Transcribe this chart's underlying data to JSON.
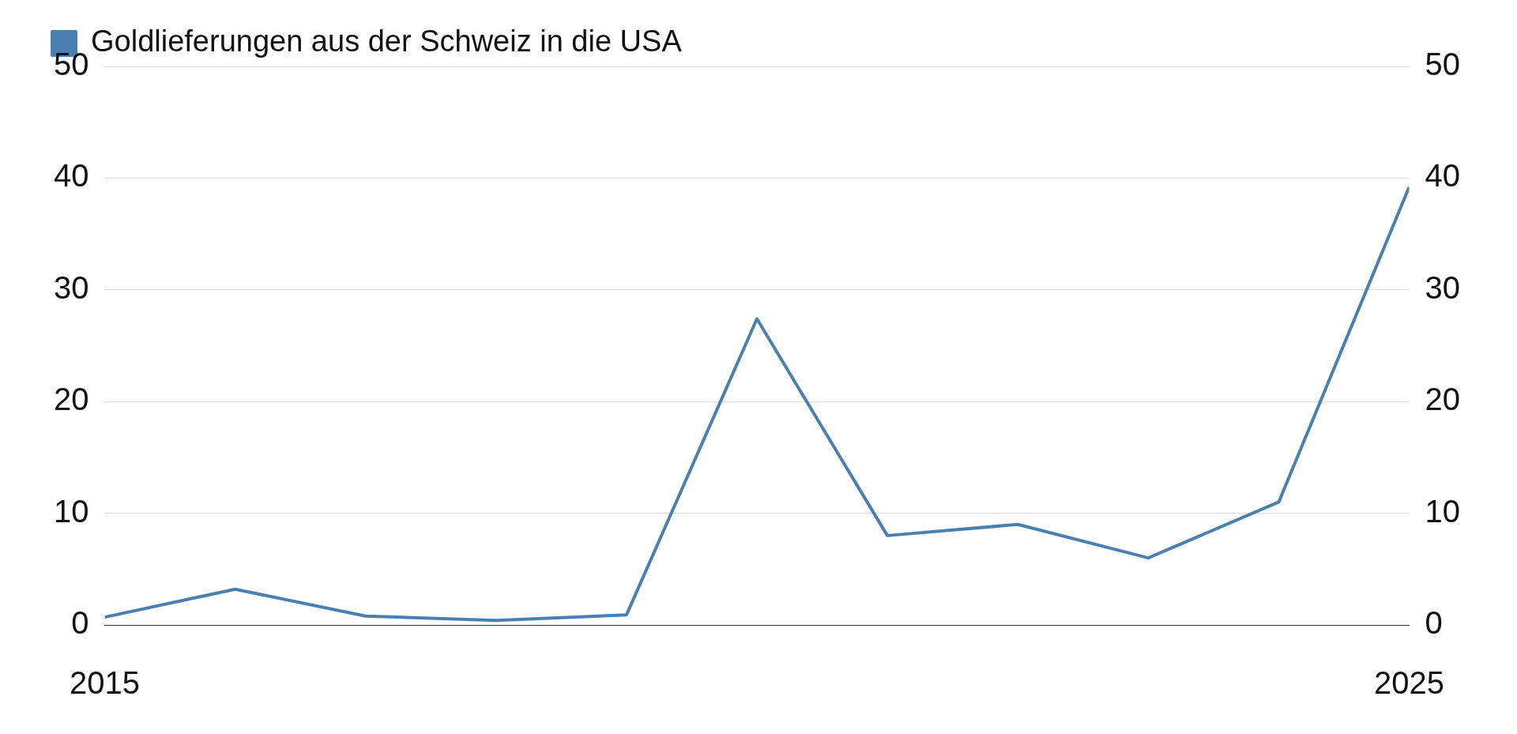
{
  "chart_data": {
    "type": "line",
    "x": [
      2015,
      2016,
      2017,
      2018,
      2019,
      2020,
      2021,
      2022,
      2023,
      2024,
      2025
    ],
    "series": [
      {
        "name": "Goldlieferungen aus der Schweiz in die USA",
        "color": "#4a80b0",
        "values": [
          0.7,
          3.2,
          0.8,
          0.4,
          0.9,
          27.4,
          8.0,
          9.0,
          6.0,
          11.0,
          39.2
        ]
      }
    ],
    "xlim": [
      2015,
      2025
    ],
    "xticks": [
      2015,
      2025
    ],
    "ylim": [
      0,
      50
    ],
    "yticks": [
      0,
      10,
      20,
      30,
      40,
      50
    ],
    "y2lim": [
      0,
      50
    ],
    "y2ticks": [
      0,
      10,
      20,
      30,
      40,
      50
    ],
    "grid": "y",
    "legend": "top left",
    "marker": "none",
    "line_style": "solid"
  }
}
